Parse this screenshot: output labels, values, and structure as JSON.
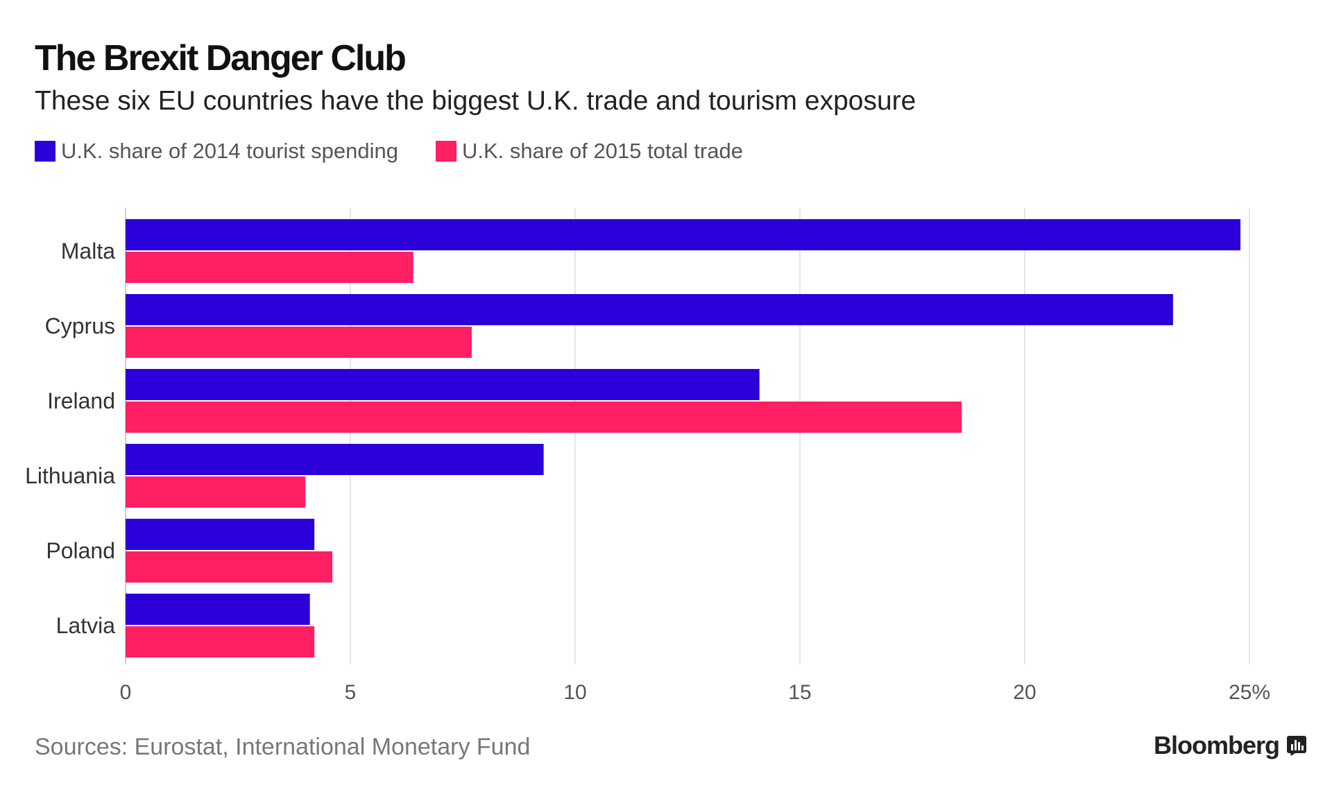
{
  "header": {
    "title": "The Brexit Danger Club",
    "subtitle": "These six EU countries have the biggest U.K. trade and tourism exposure"
  },
  "colors": {
    "tourism": "#2B00D9",
    "trade": "#FF1F62",
    "gridline": "#E6E6E6",
    "axis_text": "#555555"
  },
  "chart_data": {
    "type": "bar",
    "orientation": "horizontal",
    "categories": [
      "Malta",
      "Cyprus",
      "Ireland",
      "Lithuania",
      "Poland",
      "Latvia"
    ],
    "series": [
      {
        "name": "U.K. share of 2014 tourist spending",
        "values": [
          24.8,
          23.3,
          14.1,
          9.3,
          4.2,
          4.1
        ]
      },
      {
        "name": "U.K. share of 2015 total trade",
        "values": [
          6.4,
          7.7,
          18.6,
          4.0,
          4.6,
          4.2
        ]
      }
    ],
    "xlim": [
      0,
      25
    ],
    "xticks": [
      0,
      5,
      10,
      15,
      20,
      25
    ],
    "xtick_labels": [
      "0",
      "5",
      "10",
      "15",
      "20",
      "25%"
    ],
    "grid": true,
    "legend": "top-left"
  },
  "footer": {
    "source": "Sources: Eurostat, International Monetary Fund",
    "brand": "Bloomberg"
  }
}
